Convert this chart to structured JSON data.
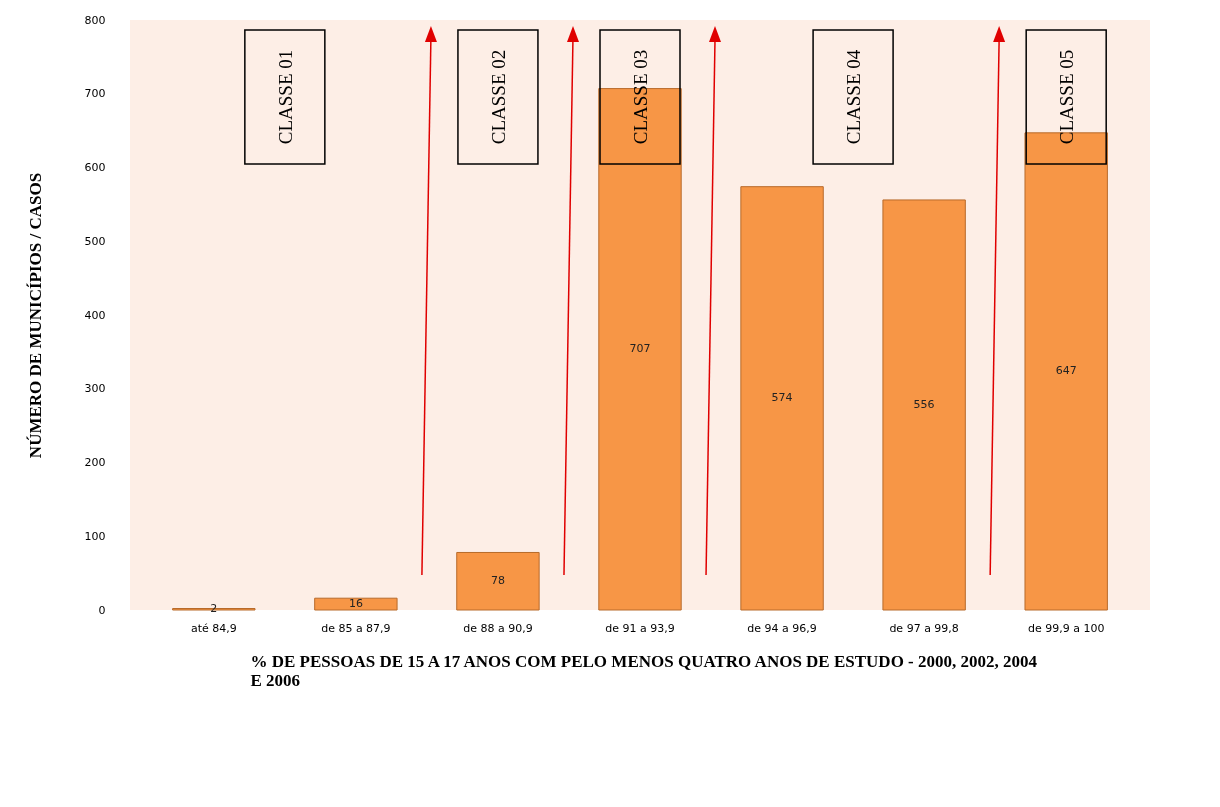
{
  "chart_data": {
    "type": "bar",
    "xlabel": "%  DE PESSOAS DE 15 A 17 ANOS COM PELO MENOS QUATRO ANOS DE ESTUDO - 2000, 2002, 2004 E 2006",
    "ylabel": "NÚMERO DE MUNICÍPIOS / CASOS",
    "categories": [
      "até 84,9",
      "de 85 a 87,9",
      "de 88 a 90,9",
      "de 91 a 93,9",
      "de 94 a 96,9",
      "de 97 a 99,8",
      "de 99,9 a 100"
    ],
    "values": [
      2,
      16,
      78,
      707,
      574,
      556,
      647
    ],
    "color": "#f79646",
    "ylim": [
      0,
      800
    ],
    "yticks": [
      0,
      100,
      200,
      300,
      400,
      500,
      600,
      700,
      800
    ],
    "data_labels": true,
    "annotations": [
      "CLASSE 01",
      "CLASSE 02",
      "CLASSE 03",
      "CLASSE 04",
      "CLASSE 05"
    ]
  }
}
